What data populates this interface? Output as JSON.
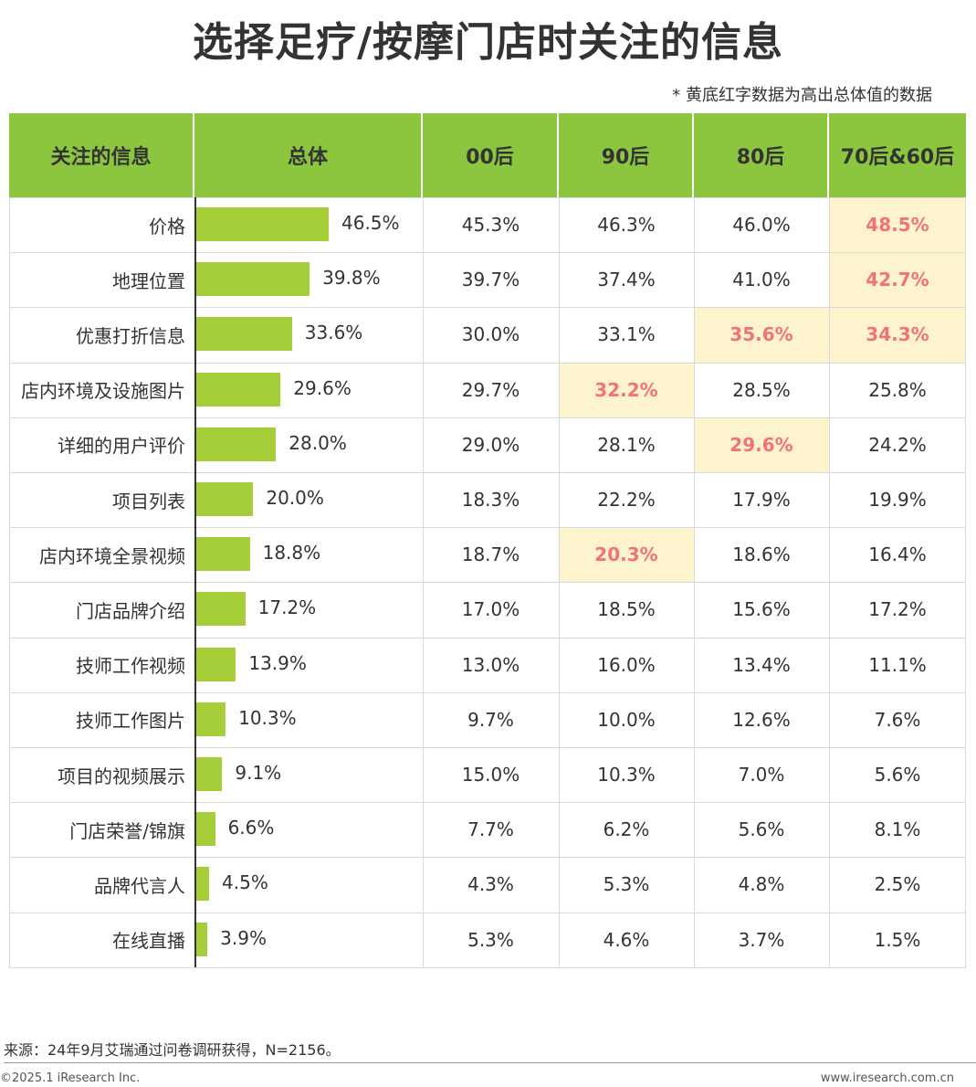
{
  "title": "选择足疗/按摩门店时关注的信息",
  "note": "* 黄底红字数据为高出总体值的数据",
  "colors": {
    "header_bg": "#8cc63f",
    "bar": "#a6ce39",
    "highlight_bg": "#fdf3cc",
    "highlight_text": "#f0727a"
  },
  "headers": [
    "关注的信息",
    "总体",
    "00后",
    "90后",
    "80后",
    "70后&60后"
  ],
  "chart_data": {
    "type": "table",
    "columns": [
      "总体",
      "00后",
      "90后",
      "80后",
      "70后&60后"
    ],
    "rows": [
      {
        "label": "价格",
        "overall": "46.5%",
        "overall_value": 46.5,
        "groups": [
          "45.3%",
          "46.3%",
          "46.0%",
          "48.5%"
        ],
        "highlight": [
          false,
          false,
          false,
          true
        ]
      },
      {
        "label": "地理位置",
        "overall": "39.8%",
        "overall_value": 39.8,
        "groups": [
          "39.7%",
          "37.4%",
          "41.0%",
          "42.7%"
        ],
        "highlight": [
          false,
          false,
          false,
          true
        ]
      },
      {
        "label": "优惠打折信息",
        "overall": "33.6%",
        "overall_value": 33.6,
        "groups": [
          "30.0%",
          "33.1%",
          "35.6%",
          "34.3%"
        ],
        "highlight": [
          false,
          false,
          true,
          true
        ]
      },
      {
        "label": "店内环境及设施图片",
        "overall": "29.6%",
        "overall_value": 29.6,
        "groups": [
          "29.7%",
          "32.2%",
          "28.5%",
          "25.8%"
        ],
        "highlight": [
          false,
          true,
          false,
          false
        ]
      },
      {
        "label": "详细的用户评价",
        "overall": "28.0%",
        "overall_value": 28.0,
        "groups": [
          "29.0%",
          "28.1%",
          "29.6%",
          "24.2%"
        ],
        "highlight": [
          false,
          false,
          true,
          false
        ]
      },
      {
        "label": "项目列表",
        "overall": "20.0%",
        "overall_value": 20.0,
        "groups": [
          "18.3%",
          "22.2%",
          "17.9%",
          "19.9%"
        ],
        "highlight": [
          false,
          false,
          false,
          false
        ]
      },
      {
        "label": "店内环境全景视频",
        "overall": "18.8%",
        "overall_value": 18.8,
        "groups": [
          "18.7%",
          "20.3%",
          "18.6%",
          "16.4%"
        ],
        "highlight": [
          false,
          true,
          false,
          false
        ]
      },
      {
        "label": "门店品牌介绍",
        "overall": "17.2%",
        "overall_value": 17.2,
        "groups": [
          "17.0%",
          "18.5%",
          "15.6%",
          "17.2%"
        ],
        "highlight": [
          false,
          false,
          false,
          false
        ]
      },
      {
        "label": "技师工作视频",
        "overall": "13.9%",
        "overall_value": 13.9,
        "groups": [
          "13.0%",
          "16.0%",
          "13.4%",
          "11.1%"
        ],
        "highlight": [
          false,
          false,
          false,
          false
        ]
      },
      {
        "label": "技师工作图片",
        "overall": "10.3%",
        "overall_value": 10.3,
        "groups": [
          "9.7%",
          "10.0%",
          "12.6%",
          "7.6%"
        ],
        "highlight": [
          false,
          false,
          false,
          false
        ]
      },
      {
        "label": "项目的视频展示",
        "overall": "9.1%",
        "overall_value": 9.1,
        "groups": [
          "15.0%",
          "10.3%",
          "7.0%",
          "5.6%"
        ],
        "highlight": [
          false,
          false,
          false,
          false
        ]
      },
      {
        "label": "门店荣誉/锦旗",
        "overall": "6.6%",
        "overall_value": 6.6,
        "groups": [
          "7.7%",
          "6.2%",
          "5.6%",
          "8.1%"
        ],
        "highlight": [
          false,
          false,
          false,
          false
        ]
      },
      {
        "label": "品牌代言人",
        "overall": "4.5%",
        "overall_value": 4.5,
        "groups": [
          "4.3%",
          "5.3%",
          "4.8%",
          "2.5%"
        ],
        "highlight": [
          false,
          false,
          false,
          false
        ]
      },
      {
        "label": "在线直播",
        "overall": "3.9%",
        "overall_value": 3.9,
        "groups": [
          "5.3%",
          "4.6%",
          "3.7%",
          "1.5%"
        ],
        "highlight": [
          false,
          false,
          false,
          false
        ]
      }
    ]
  },
  "footer": {
    "source": "来源：24年9月艾瑞通过问卷调研获得，N=2156。",
    "copyright": "©2025.1 iResearch Inc.",
    "url": "www.iresearch.com.cn"
  }
}
